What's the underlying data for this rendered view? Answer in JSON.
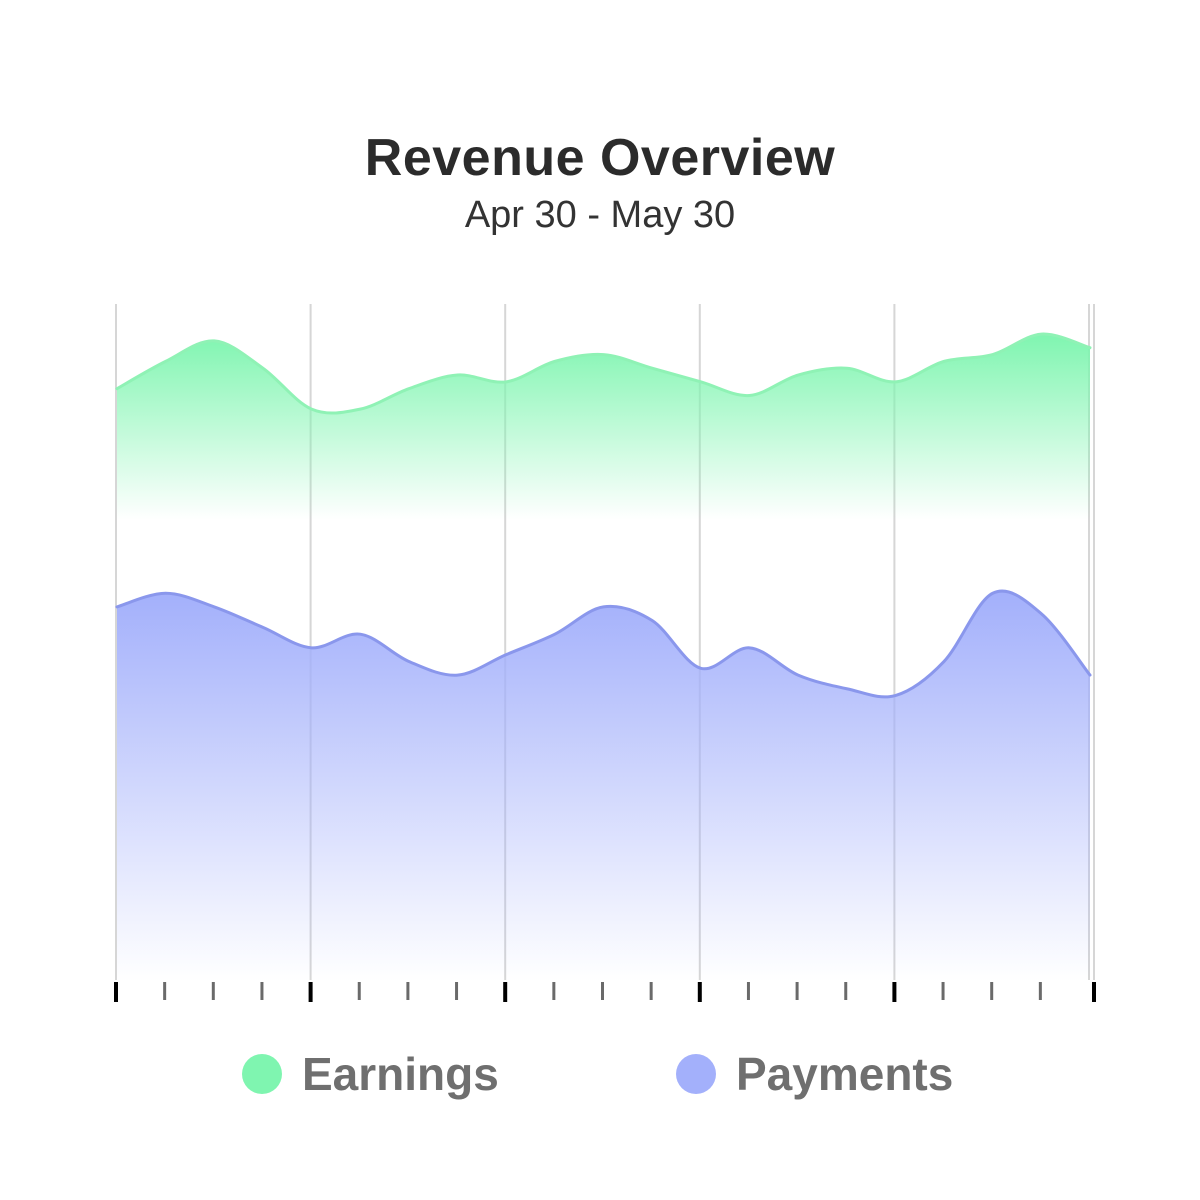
{
  "chart_data": {
    "type": "area",
    "title": "Revenue Overview",
    "subtitle": "Apr 30 - May 30",
    "xlabel": "",
    "ylabel": "",
    "x": [
      0,
      1,
      2,
      3,
      4,
      5,
      6,
      7,
      8,
      9,
      10,
      11,
      12,
      13,
      14,
      15,
      16,
      17,
      18,
      19,
      20
    ],
    "xlim": [
      0,
      20
    ],
    "ylim": [
      0,
      100
    ],
    "grid": true,
    "legend": "bottom",
    "series": [
      {
        "name": "Earnings",
        "color": "#7ff5b0",
        "line_color": "#8ff2b5",
        "values": [
          87,
          91,
          94,
          90,
          84,
          84,
          87,
          89,
          88,
          91,
          92,
          90,
          88,
          86,
          89,
          90,
          88,
          91,
          92,
          95,
          93
        ]
      },
      {
        "name": "Payments",
        "color": "#a3b0fb",
        "line_color": "#8a97ec",
        "values": [
          55,
          57,
          55,
          52,
          49,
          51,
          47,
          45,
          48,
          51,
          55,
          53,
          46,
          49,
          45,
          43,
          42,
          47,
          57,
          54,
          45
        ]
      }
    ]
  }
}
